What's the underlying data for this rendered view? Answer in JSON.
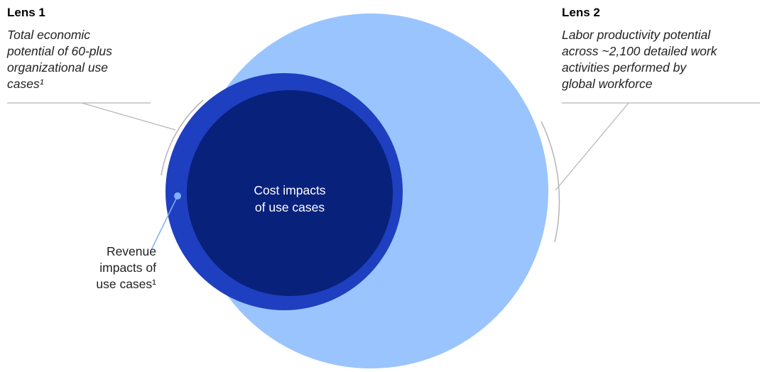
{
  "lens1": {
    "title": "Lens 1",
    "description": [
      "Total economic",
      "potential of 60-plus",
      "organizational use",
      "cases¹"
    ]
  },
  "lens2": {
    "title": "Lens 2",
    "description": [
      "Labor productivity potential",
      "across ~2,100 detailed work",
      "activities performed by",
      "global workforce"
    ]
  },
  "inner": {
    "label": [
      "Cost impacts",
      "of use cases"
    ]
  },
  "revenue": {
    "label": [
      "Revenue",
      "impacts of",
      "use cases¹"
    ]
  },
  "colors": {
    "large_circle": "#9ac4fe",
    "medium_circle": "#1e3fc0",
    "inner_circle": "#08217a",
    "leader_line": "#b5b5b5",
    "revenue_pointer": "#7fb1f7"
  }
}
